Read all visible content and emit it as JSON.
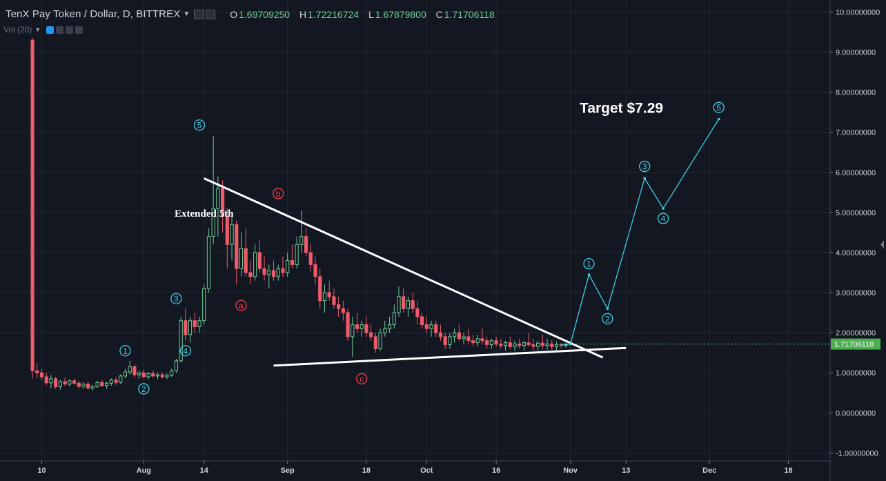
{
  "header": {
    "title": "TenX Pay Token / Dollar, D, BITTREX",
    "open_label": "O",
    "open": "1.69709250",
    "high_label": "H",
    "high": "1.72216724",
    "low_label": "L",
    "low": "1.67879800",
    "close_label": "C",
    "close": "1.71706118"
  },
  "volume_indicator": {
    "label": "Vol (20)"
  },
  "colors": {
    "background": "#131722",
    "grid": "#242832",
    "axis_text": "#d1d4dc",
    "up": "#6fcf97",
    "down": "#ef5b6b",
    "wave": "#42d0e5",
    "abc": "#f0424f",
    "trendline": "#ffffff",
    "price_tag": "#4caf50"
  },
  "chart_data": {
    "type": "candlestick",
    "y_axis": {
      "ylim": [
        -1.2,
        10.3
      ],
      "ticks": [
        -1,
        0,
        1,
        2,
        3,
        4,
        5,
        6,
        7,
        8,
        9,
        10
      ],
      "tick_labels": [
        "-1.00000000",
        "0.00000000",
        "1.00000000",
        "2.00000000",
        "3.00000000",
        "4.00000000",
        "5.00000000",
        "6.00000000",
        "7.00000000",
        "8.00000000",
        "9.00000000",
        "10.00000000"
      ]
    },
    "x_axis": {
      "xlim": [
        "2017-07-01",
        "2017-12-27"
      ],
      "ticks": [
        "2017-07-10",
        "2017-08-01",
        "2017-08-14",
        "2017-09-01",
        "2017-09-18",
        "2017-10-01",
        "2017-10-16",
        "2017-11-01",
        "2017-11-13",
        "2017-12-01",
        "2017-12-18"
      ],
      "tick_labels": [
        "10",
        "Aug",
        "14",
        "Sep",
        "18",
        "Oct",
        "16",
        "Nov",
        "13",
        "Dec",
        "18"
      ]
    },
    "current_price": 1.71706118,
    "current_price_label": "1.71706118",
    "candles": [
      [
        "2017-07-08",
        9.3,
        9.35,
        0.85,
        1.05
      ],
      [
        "2017-07-09",
        1.05,
        1.25,
        0.88,
        1.0
      ],
      [
        "2017-07-10",
        1.0,
        1.1,
        0.82,
        0.9
      ],
      [
        "2017-07-11",
        0.9,
        1.0,
        0.7,
        0.75
      ],
      [
        "2017-07-12",
        0.75,
        0.95,
        0.62,
        0.85
      ],
      [
        "2017-07-13",
        0.85,
        0.9,
        0.6,
        0.65
      ],
      [
        "2017-07-14",
        0.65,
        0.82,
        0.58,
        0.78
      ],
      [
        "2017-07-15",
        0.78,
        0.88,
        0.68,
        0.72
      ],
      [
        "2017-07-16",
        0.72,
        0.84,
        0.66,
        0.8
      ],
      [
        "2017-07-17",
        0.8,
        0.86,
        0.7,
        0.74
      ],
      [
        "2017-07-18",
        0.74,
        0.8,
        0.62,
        0.66
      ],
      [
        "2017-07-19",
        0.66,
        0.76,
        0.6,
        0.72
      ],
      [
        "2017-07-20",
        0.72,
        0.78,
        0.58,
        0.62
      ],
      [
        "2017-07-21",
        0.62,
        0.7,
        0.55,
        0.66
      ],
      [
        "2017-07-22",
        0.66,
        0.8,
        0.62,
        0.76
      ],
      [
        "2017-07-23",
        0.76,
        0.82,
        0.64,
        0.68
      ],
      [
        "2017-07-24",
        0.68,
        0.78,
        0.6,
        0.74
      ],
      [
        "2017-07-25",
        0.74,
        0.86,
        0.68,
        0.82
      ],
      [
        "2017-07-26",
        0.82,
        0.9,
        0.7,
        0.76
      ],
      [
        "2017-07-27",
        0.76,
        0.96,
        0.72,
        0.92
      ],
      [
        "2017-07-28",
        0.92,
        1.1,
        0.86,
        1.02
      ],
      [
        "2017-07-29",
        1.02,
        1.3,
        0.95,
        1.15
      ],
      [
        "2017-07-30",
        1.15,
        1.2,
        0.88,
        0.95
      ],
      [
        "2017-07-31",
        0.95,
        1.05,
        0.85,
        1.0
      ],
      [
        "2017-08-01",
        1.0,
        1.08,
        0.86,
        0.9
      ],
      [
        "2017-08-02",
        0.9,
        1.02,
        0.84,
        0.98
      ],
      [
        "2017-08-03",
        0.98,
        1.05,
        0.88,
        0.92
      ],
      [
        "2017-08-04",
        0.92,
        1.0,
        0.84,
        0.95
      ],
      [
        "2017-08-05",
        0.95,
        1.0,
        0.86,
        0.9
      ],
      [
        "2017-08-06",
        0.9,
        0.98,
        0.84,
        0.94
      ],
      [
        "2017-08-07",
        0.94,
        1.1,
        0.9,
        1.05
      ],
      [
        "2017-08-08",
        1.05,
        1.35,
        1.0,
        1.3
      ],
      [
        "2017-08-09",
        1.3,
        2.4,
        1.25,
        2.3
      ],
      [
        "2017-08-10",
        2.3,
        2.6,
        1.8,
        1.95
      ],
      [
        "2017-08-11",
        1.95,
        2.4,
        1.75,
        2.3
      ],
      [
        "2017-08-12",
        2.3,
        2.5,
        2.0,
        2.15
      ],
      [
        "2017-08-13",
        2.15,
        2.4,
        2.0,
        2.3
      ],
      [
        "2017-08-14",
        2.3,
        3.2,
        2.2,
        3.1
      ],
      [
        "2017-08-15",
        3.1,
        4.6,
        3.0,
        4.4
      ],
      [
        "2017-08-16",
        4.4,
        6.9,
        4.2,
        5.1
      ],
      [
        "2017-08-17",
        5.1,
        5.9,
        4.4,
        5.6
      ],
      [
        "2017-08-18",
        5.6,
        5.8,
        4.5,
        4.9
      ],
      [
        "2017-08-19",
        4.9,
        5.1,
        3.6,
        4.2
      ],
      [
        "2017-08-20",
        4.2,
        5.0,
        3.8,
        4.7
      ],
      [
        "2017-08-21",
        4.7,
        4.8,
        3.2,
        3.6
      ],
      [
        "2017-08-22",
        3.6,
        4.5,
        3.4,
        4.1
      ],
      [
        "2017-08-23",
        4.1,
        4.6,
        3.4,
        3.5
      ],
      [
        "2017-08-24",
        3.5,
        3.8,
        3.2,
        3.4
      ],
      [
        "2017-08-25",
        3.4,
        4.2,
        3.3,
        4.0
      ],
      [
        "2017-08-26",
        4.0,
        4.3,
        3.5,
        3.6
      ],
      [
        "2017-08-27",
        3.6,
        3.9,
        3.3,
        3.45
      ],
      [
        "2017-08-28",
        3.45,
        3.7,
        3.1,
        3.55
      ],
      [
        "2017-08-29",
        3.55,
        3.8,
        3.3,
        3.4
      ],
      [
        "2017-08-30",
        3.4,
        3.7,
        3.3,
        3.6
      ],
      [
        "2017-08-31",
        3.6,
        3.9,
        3.4,
        3.5
      ],
      [
        "2017-09-01",
        3.5,
        4.0,
        3.4,
        3.8
      ],
      [
        "2017-09-02",
        3.8,
        4.2,
        3.6,
        3.7
      ],
      [
        "2017-09-03",
        3.7,
        4.4,
        3.6,
        4.2
      ],
      [
        "2017-09-04",
        4.2,
        5.05,
        4.0,
        4.4
      ],
      [
        "2017-09-05",
        4.4,
        4.6,
        3.9,
        4.0
      ],
      [
        "2017-09-06",
        4.0,
        4.2,
        3.5,
        3.7
      ],
      [
        "2017-09-07",
        3.7,
        3.9,
        3.2,
        3.4
      ],
      [
        "2017-09-08",
        3.4,
        3.6,
        2.6,
        2.8
      ],
      [
        "2017-09-09",
        2.8,
        3.2,
        2.5,
        3.0
      ],
      [
        "2017-09-10",
        3.0,
        3.3,
        2.8,
        2.9
      ],
      [
        "2017-09-11",
        2.9,
        3.1,
        2.6,
        2.7
      ],
      [
        "2017-09-12",
        2.7,
        2.9,
        2.4,
        2.6
      ],
      [
        "2017-09-13",
        2.6,
        2.8,
        2.3,
        2.5
      ],
      [
        "2017-09-14",
        2.5,
        2.6,
        1.8,
        1.9
      ],
      [
        "2017-09-15",
        1.9,
        2.4,
        1.4,
        2.2
      ],
      [
        "2017-09-16",
        2.2,
        2.5,
        2.0,
        2.1
      ],
      [
        "2017-09-17",
        2.1,
        2.3,
        1.9,
        2.2
      ],
      [
        "2017-09-18",
        2.2,
        2.4,
        1.9,
        2.0
      ],
      [
        "2017-09-19",
        2.0,
        2.2,
        1.8,
        1.9
      ],
      [
        "2017-09-20",
        1.9,
        2.0,
        1.5,
        1.6
      ],
      [
        "2017-09-21",
        1.6,
        2.1,
        1.55,
        2.0
      ],
      [
        "2017-09-22",
        2.0,
        2.3,
        1.9,
        2.1
      ],
      [
        "2017-09-23",
        2.1,
        2.4,
        2.0,
        2.2
      ],
      [
        "2017-09-24",
        2.2,
        2.7,
        2.1,
        2.5
      ],
      [
        "2017-09-25",
        2.5,
        3.15,
        2.4,
        2.9
      ],
      [
        "2017-09-26",
        2.9,
        3.1,
        2.5,
        2.6
      ],
      [
        "2017-09-27",
        2.6,
        2.9,
        2.4,
        2.8
      ],
      [
        "2017-09-28",
        2.8,
        3.0,
        2.5,
        2.6
      ],
      [
        "2017-09-29",
        2.6,
        2.8,
        2.2,
        2.4
      ],
      [
        "2017-09-30",
        2.4,
        2.5,
        2.1,
        2.2
      ],
      [
        "2017-10-01",
        2.2,
        2.4,
        2.0,
        2.1
      ],
      [
        "2017-10-02",
        2.1,
        2.3,
        1.9,
        2.2
      ],
      [
        "2017-10-03",
        2.2,
        2.3,
        1.9,
        2.0
      ],
      [
        "2017-10-04",
        2.0,
        2.2,
        1.8,
        1.9
      ],
      [
        "2017-10-05",
        1.9,
        2.0,
        1.6,
        1.7
      ],
      [
        "2017-10-06",
        1.7,
        2.0,
        1.6,
        1.9
      ],
      [
        "2017-10-07",
        1.9,
        2.1,
        1.75,
        2.0
      ],
      [
        "2017-10-08",
        2.0,
        2.2,
        1.8,
        1.85
      ],
      [
        "2017-10-09",
        1.85,
        2.0,
        1.7,
        1.9
      ],
      [
        "2017-10-10",
        1.9,
        2.1,
        1.7,
        1.8
      ],
      [
        "2017-10-11",
        1.8,
        1.95,
        1.65,
        1.75
      ],
      [
        "2017-10-12",
        1.75,
        1.95,
        1.65,
        1.85
      ],
      [
        "2017-10-13",
        1.85,
        2.1,
        1.7,
        1.8
      ],
      [
        "2017-10-14",
        1.8,
        1.9,
        1.6,
        1.7
      ],
      [
        "2017-10-15",
        1.7,
        1.85,
        1.6,
        1.8
      ],
      [
        "2017-10-16",
        1.8,
        1.9,
        1.65,
        1.72
      ],
      [
        "2017-10-17",
        1.72,
        1.85,
        1.6,
        1.68
      ],
      [
        "2017-10-18",
        1.68,
        1.8,
        1.55,
        1.75
      ],
      [
        "2017-10-19",
        1.75,
        1.9,
        1.6,
        1.65
      ],
      [
        "2017-10-20",
        1.65,
        1.8,
        1.55,
        1.72
      ],
      [
        "2017-10-21",
        1.72,
        1.85,
        1.6,
        1.68
      ],
      [
        "2017-10-22",
        1.68,
        1.8,
        1.55,
        1.75
      ],
      [
        "2017-10-23",
        1.75,
        2.0,
        1.65,
        1.7
      ],
      [
        "2017-10-24",
        1.7,
        1.85,
        1.55,
        1.66
      ],
      [
        "2017-10-25",
        1.66,
        1.8,
        1.55,
        1.74
      ],
      [
        "2017-10-26",
        1.74,
        1.95,
        1.6,
        1.68
      ],
      [
        "2017-10-27",
        1.68,
        1.85,
        1.58,
        1.72
      ],
      [
        "2017-10-28",
        1.72,
        1.82,
        1.58,
        1.65
      ],
      [
        "2017-10-29",
        1.65,
        1.78,
        1.56,
        1.7
      ],
      [
        "2017-10-30",
        1.7,
        1.74,
        1.62,
        1.68
      ],
      [
        "2017-10-31",
        1.68,
        1.74,
        1.63,
        1.7
      ]
    ],
    "descending_trendline": [
      [
        "2017-08-14",
        5.85
      ],
      [
        "2017-11-08",
        1.38
      ]
    ],
    "support_trendline": [
      [
        "2017-08-29",
        1.18
      ],
      [
        "2017-11-13",
        1.62
      ]
    ],
    "projection_path": [
      [
        "2017-10-30",
        1.7
      ],
      [
        "2017-11-01",
        1.72
      ],
      [
        "2017-11-05",
        3.45
      ],
      [
        "2017-11-09",
        2.6
      ],
      [
        "2017-11-17",
        5.85
      ],
      [
        "2017-11-21",
        5.1
      ],
      [
        "2017-12-03",
        7.33
      ]
    ],
    "wave_labels": [
      {
        "text": "1",
        "x": "2017-07-28",
        "y": 1.55,
        "color": "wave"
      },
      {
        "text": "2",
        "x": "2017-08-01",
        "y": 0.6,
        "color": "wave"
      },
      {
        "text": "3",
        "x": "2017-08-08",
        "y": 2.85,
        "color": "wave"
      },
      {
        "text": "4",
        "x": "2017-08-10",
        "y": 1.55,
        "color": "wave"
      },
      {
        "text": "5",
        "x": "2017-08-13",
        "y": 7.18,
        "color": "wave"
      },
      {
        "text": "a",
        "x": "2017-08-22",
        "y": 2.68,
        "color": "abc"
      },
      {
        "text": "b",
        "x": "2017-08-30",
        "y": 5.47,
        "color": "abc"
      },
      {
        "text": "c",
        "x": "2017-09-17",
        "y": 0.85,
        "color": "abc"
      },
      {
        "text": "1",
        "x": "2017-11-05",
        "y": 3.72,
        "color": "wave"
      },
      {
        "text": "2",
        "x": "2017-11-09",
        "y": 2.35,
        "color": "wave"
      },
      {
        "text": "3",
        "x": "2017-11-17",
        "y": 6.15,
        "color": "wave"
      },
      {
        "text": "4",
        "x": "2017-11-21",
        "y": 4.85,
        "color": "wave"
      },
      {
        "text": "5",
        "x": "2017-12-03",
        "y": 7.62,
        "color": "wave"
      }
    ],
    "annotations": [
      {
        "text": "Extended 5th",
        "x": "2017-08-14",
        "y": 4.98,
        "style": "small"
      },
      {
        "text": "Target $7.29",
        "x": "2017-11-12",
        "y": 7.62,
        "style": "large"
      }
    ]
  }
}
